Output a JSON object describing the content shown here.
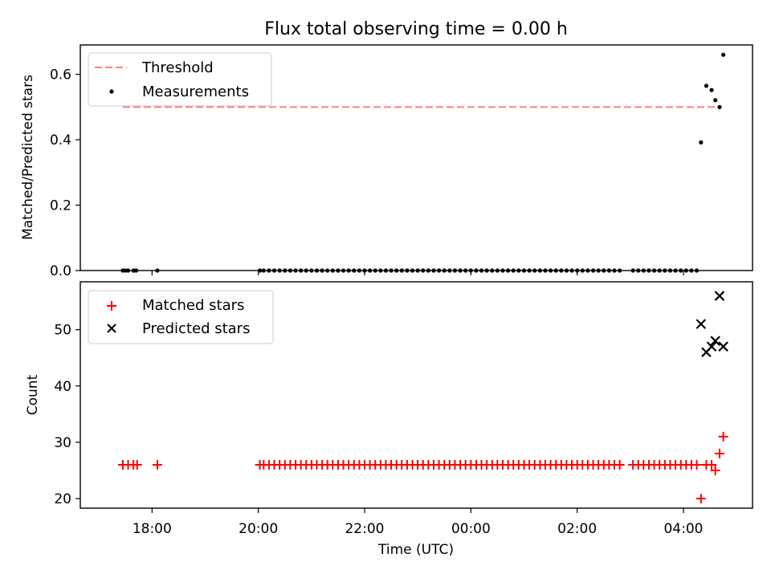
{
  "figure_title": "Flux total observing time = 0.00 h",
  "chart_data": [
    {
      "type": "scatter",
      "panel": "top",
      "xlabel": "",
      "ylabel": "Matched/Predicted stars",
      "ylim": [
        0,
        0.69
      ],
      "yticks": [
        0.0,
        0.2,
        0.4,
        0.6
      ],
      "ytick_labels": [
        "0.0",
        "0.2",
        "0.4",
        "0.6"
      ],
      "legend_placement": "top-left",
      "threshold": {
        "name": "Threshold",
        "value": 0.5,
        "x_start": 17.45,
        "x_end": 28.7,
        "color": "#ff7f7f"
      },
      "series": [
        {
          "name": "Measurements",
          "marker": "dot",
          "color": "#000000",
          "x": [
            17.45,
            17.5,
            17.55,
            17.65,
            17.7,
            18.1,
            20.03,
            20.1,
            20.2,
            20.3,
            20.4,
            20.5,
            20.6,
            20.7,
            20.8,
            20.9,
            21.0,
            21.1,
            21.2,
            21.3,
            21.4,
            21.5,
            21.6,
            21.7,
            21.8,
            21.9,
            22.0,
            22.1,
            22.2,
            22.3,
            22.4,
            22.5,
            22.6,
            22.7,
            22.8,
            22.9,
            23.0,
            23.1,
            23.2,
            23.3,
            23.4,
            23.5,
            23.6,
            23.7,
            23.8,
            23.9,
            24.0,
            24.1,
            24.2,
            24.3,
            24.4,
            24.5,
            24.6,
            24.7,
            24.8,
            24.9,
            25.0,
            25.1,
            25.2,
            25.3,
            25.4,
            25.5,
            25.6,
            25.7,
            25.8,
            25.9,
            26.0,
            26.1,
            26.2,
            26.3,
            26.4,
            26.5,
            26.6,
            26.7,
            26.8,
            27.05,
            27.15,
            27.25,
            27.35,
            27.45,
            27.55,
            27.65,
            27.75,
            27.85,
            27.95,
            28.05,
            28.15,
            28.25,
            28.33,
            28.43,
            28.53,
            28.6,
            28.68,
            28.75
          ],
          "y": [
            0,
            0,
            0,
            0,
            0,
            0,
            0,
            0,
            0,
            0,
            0,
            0,
            0,
            0,
            0,
            0,
            0,
            0,
            0,
            0,
            0,
            0,
            0,
            0,
            0,
            0,
            0,
            0,
            0,
            0,
            0,
            0,
            0,
            0,
            0,
            0,
            0,
            0,
            0,
            0,
            0,
            0,
            0,
            0,
            0,
            0,
            0,
            0,
            0,
            0,
            0,
            0,
            0,
            0,
            0,
            0,
            0,
            0,
            0,
            0,
            0,
            0,
            0,
            0,
            0,
            0,
            0,
            0,
            0,
            0,
            0,
            0,
            0,
            0,
            0,
            0,
            0,
            0,
            0,
            0,
            0,
            0,
            0,
            0,
            0,
            0,
            0,
            0,
            0.392,
            0.565,
            0.552,
            0.521,
            0.5,
            0.66
          ]
        }
      ]
    },
    {
      "type": "scatter",
      "panel": "bottom",
      "xlabel": "Time (UTC)",
      "ylabel": "Count",
      "ylim": [
        18.3,
        58.5
      ],
      "yticks": [
        20,
        30,
        40,
        50
      ],
      "ytick_labels": [
        "20",
        "30",
        "40",
        "50"
      ],
      "xlim": [
        16.65,
        29.3
      ],
      "xticks": [
        18,
        20,
        22,
        24,
        26,
        28
      ],
      "xtick_labels": [
        "18:00",
        "20:00",
        "22:00",
        "00:00",
        "02:00",
        "04:00"
      ],
      "legend_placement": "top-left",
      "series": [
        {
          "name": "Matched stars",
          "marker": "plus",
          "color": "#ff0000",
          "x": [
            17.45,
            17.55,
            17.65,
            17.72,
            18.1,
            20.03,
            20.1,
            20.2,
            20.3,
            20.4,
            20.5,
            20.6,
            20.7,
            20.8,
            20.9,
            21.0,
            21.1,
            21.2,
            21.3,
            21.4,
            21.5,
            21.6,
            21.7,
            21.8,
            21.9,
            22.0,
            22.1,
            22.2,
            22.3,
            22.4,
            22.5,
            22.6,
            22.7,
            22.8,
            22.9,
            23.0,
            23.1,
            23.2,
            23.3,
            23.4,
            23.5,
            23.6,
            23.7,
            23.8,
            23.9,
            24.0,
            24.1,
            24.2,
            24.3,
            24.4,
            24.5,
            24.6,
            24.7,
            24.8,
            24.9,
            25.0,
            25.1,
            25.2,
            25.3,
            25.4,
            25.5,
            25.6,
            25.7,
            25.8,
            25.9,
            26.0,
            26.1,
            26.2,
            26.3,
            26.4,
            26.5,
            26.6,
            26.7,
            26.8,
            27.05,
            27.15,
            27.25,
            27.35,
            27.45,
            27.55,
            27.65,
            27.75,
            27.85,
            27.95,
            28.05,
            28.15,
            28.25,
            28.33,
            28.43,
            28.53,
            28.6,
            28.68,
            28.75
          ],
          "y": [
            26,
            26,
            26,
            26,
            26,
            26,
            26,
            26,
            26,
            26,
            26,
            26,
            26,
            26,
            26,
            26,
            26,
            26,
            26,
            26,
            26,
            26,
            26,
            26,
            26,
            26,
            26,
            26,
            26,
            26,
            26,
            26,
            26,
            26,
            26,
            26,
            26,
            26,
            26,
            26,
            26,
            26,
            26,
            26,
            26,
            26,
            26,
            26,
            26,
            26,
            26,
            26,
            26,
            26,
            26,
            26,
            26,
            26,
            26,
            26,
            26,
            26,
            26,
            26,
            26,
            26,
            26,
            26,
            26,
            26,
            26,
            26,
            26,
            26,
            26,
            26,
            26,
            26,
            26,
            26,
            26,
            26,
            26,
            26,
            26,
            26,
            26,
            20,
            26,
            26,
            25,
            28,
            31
          ]
        },
        {
          "name": "Predicted stars",
          "marker": "x",
          "color": "#000000",
          "x": [
            28.33,
            28.43,
            28.53,
            28.6,
            28.68,
            28.75
          ],
          "y": [
            51,
            46,
            47,
            48,
            56,
            47
          ]
        }
      ]
    }
  ]
}
